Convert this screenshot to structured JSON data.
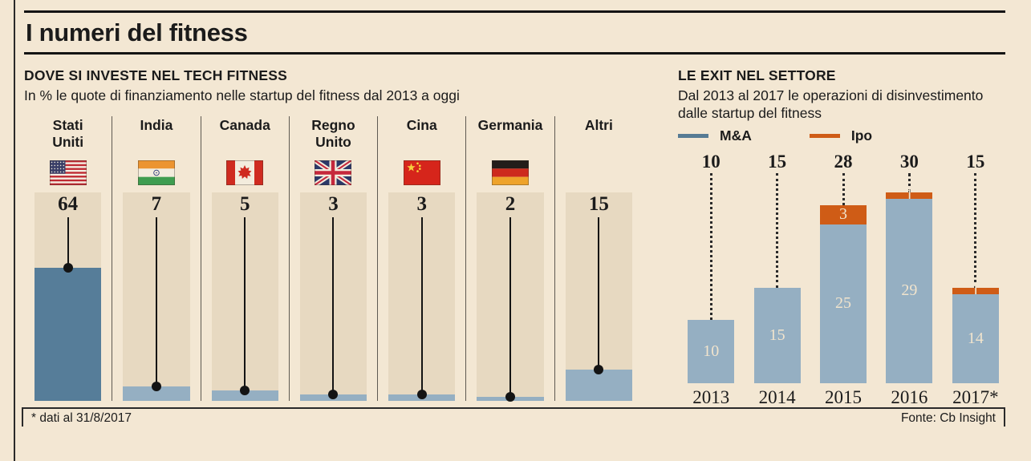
{
  "page": {
    "title": "I numeri del fitness",
    "footnote": "* dati al 31/8/2017",
    "source": "Fonte: Cb Insight"
  },
  "chart_data": [
    {
      "type": "bar",
      "title": "DOVE SI INVESTE NEL TECH FITNESS",
      "subtitle": "In % le quote di finanziamento nelle startup del fitness dal 2013 a oggi",
      "unit": "%",
      "categories": [
        "Stati Uniti",
        "India",
        "Canada",
        "Regno Unito",
        "Cina",
        "Germania",
        "Altri"
      ],
      "labels_display": [
        "Stati\nUniti",
        "India",
        "Canada",
        "Regno\nUnito",
        "Cina",
        "Germania",
        "Altri"
      ],
      "values": [
        64,
        7,
        5,
        3,
        3,
        2,
        15
      ],
      "flags": [
        "us-flag-icon",
        "india-flag-icon",
        "canada-flag-icon",
        "uk-flag-icon",
        "china-flag-icon",
        "germany-flag-icon",
        null
      ],
      "bar_colors": [
        "#567d99",
        "#95afc2",
        "#95afc2",
        "#95afc2",
        "#95afc2",
        "#95afc2",
        "#95afc2"
      ],
      "track_color": "#e7d9c1",
      "ylim": [
        0,
        100
      ],
      "grid": false
    },
    {
      "type": "stacked-bar",
      "title": "LE EXIT NEL SETTORE",
      "subtitle": "Dal 2013 al 2017 le operazioni di disinvestimento dalle startup del fitness",
      "categories": [
        "2013",
        "2014",
        "2015",
        "2016",
        "2017*"
      ],
      "totals": [
        10,
        15,
        28,
        30,
        15
      ],
      "series": [
        {
          "name": "M&A",
          "color": "#95afc2",
          "legend_color": "#567b94",
          "values": [
            10,
            15,
            25,
            29,
            14
          ]
        },
        {
          "name": "Ipo",
          "color": "#cf5c16",
          "legend_color": "#cf5c16",
          "values": [
            0,
            0,
            3,
            1,
            1
          ]
        }
      ],
      "ylim": [
        0,
        30
      ],
      "grid": false,
      "legend_position": "top-left"
    }
  ]
}
